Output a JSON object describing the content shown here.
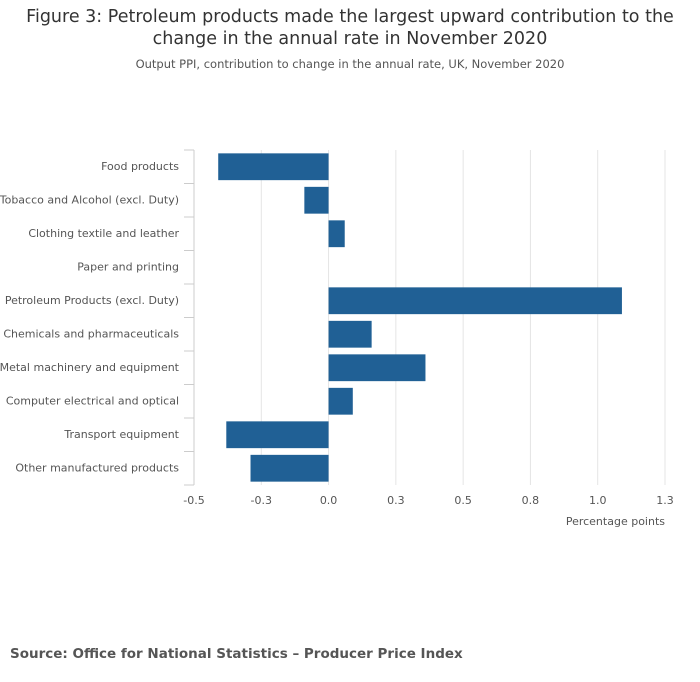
{
  "chart_data": {
    "type": "hbar",
    "title": "Figure 3: Petroleum products made the largest upward contribution to the change in the annual rate in November 2020",
    "subtitle": "Output PPI, contribution to change in the annual rate, UK, November 2020",
    "xlabel": "Percentage points",
    "source": "Source: Office for National Statistics – Producer Price Index",
    "categories": [
      "Food products",
      "Tobacco and Alcohol (excl. Duty)",
      "Clothing textile and leather",
      "Paper and printing",
      "Petroleum Products (excl. Duty)",
      "Chemicals and pharmaceuticals",
      "Metal machinery and equipment",
      "Computer electrical and optical",
      "Transport equipment",
      "Other manufactured products"
    ],
    "values": [
      -0.41,
      -0.09,
      0.06,
      0,
      1.09,
      0.16,
      0.36,
      0.09,
      -0.38,
      -0.29
    ],
    "color": "#206095",
    "xlim": [
      -0.5,
      1.25
    ],
    "xticks": [
      -0.5,
      {
        "value": -0.25,
        "label": "-0.3"
      },
      {
        "value": 0,
        "label": "0.0"
      },
      {
        "value": 0.25,
        "label": "0.3"
      },
      0.5,
      {
        "value": 0.75,
        "label": "0.8"
      },
      {
        "value": 1,
        "label": "1.0"
      },
      {
        "value": 1.25,
        "label": "1.3"
      }
    ],
    "grid": true
  }
}
